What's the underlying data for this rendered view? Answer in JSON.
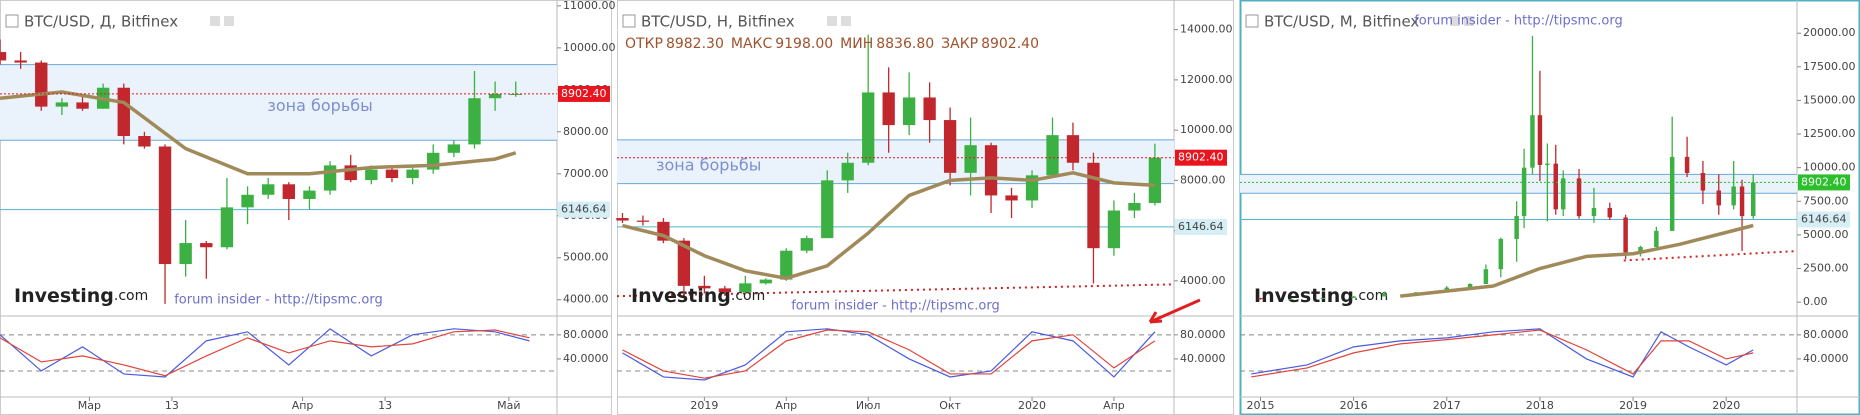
{
  "chart_data": [
    {
      "type": "candlestick",
      "title": "BTC/USD, Д, Bitfinex",
      "xlim": [
        -13,
        68
      ],
      "ylim": [
        3660,
        11140
      ],
      "yticks": [
        {
          "value": 4000,
          "label": "4000.00"
        },
        {
          "value": 5000,
          "label": "5000.00"
        },
        {
          "value": 6000,
          "label": "6000.00"
        },
        {
          "value": 7000,
          "label": "7000.00"
        },
        {
          "value": 8000,
          "label": "8000.00"
        },
        {
          "value": 9000,
          "label": "9000.00"
        },
        {
          "value": 10000,
          "label": "10000.00"
        },
        {
          "value": 11000,
          "label": "11000.00"
        }
      ],
      "xticks": [
        {
          "value": 0,
          "label": "Мар"
        },
        {
          "value": 12,
          "label": "13"
        },
        {
          "value": 31,
          "label": "Апр"
        },
        {
          "value": 43,
          "label": "13"
        },
        {
          "value": 61,
          "label": "Май"
        }
      ],
      "x": [
        -13,
        -10,
        -7,
        -4,
        -1,
        2,
        5,
        8,
        11,
        14,
        17,
        20,
        23,
        26,
        29,
        32,
        35,
        38,
        41,
        44,
        47,
        50,
        53,
        56,
        59,
        62
      ],
      "open": [
        9900,
        9700,
        9650,
        8600,
        8700,
        8550,
        9050,
        7900,
        7650,
        4850,
        5350,
        5250,
        6200,
        6500,
        6750,
        6400,
        6600,
        7200,
        6850,
        7100,
        6900,
        7100,
        7500,
        7700,
        8800,
        8900
      ],
      "high": [
        10200,
        9900,
        9700,
        8800,
        8900,
        9150,
        9150,
        8000,
        7700,
        5900,
        5400,
        6900,
        6700,
        6900,
        6800,
        6700,
        7300,
        7450,
        7200,
        7200,
        7200,
        7700,
        7800,
        9450,
        9200,
        9198
      ],
      "low": [
        9600,
        9500,
        8500,
        8400,
        8500,
        8550,
        7700,
        7600,
        3900,
        4550,
        4500,
        5200,
        5800,
        6400,
        5900,
        6150,
        6500,
        6800,
        6750,
        6800,
        6750,
        7000,
        7400,
        7600,
        8500,
        8836
      ],
      "close": [
        9700,
        9650,
        8600,
        8700,
        8550,
        9050,
        7900,
        7650,
        4850,
        5350,
        5250,
        6200,
        6500,
        6750,
        6400,
        6600,
        7200,
        6850,
        7100,
        6900,
        7100,
        7500,
        7700,
        8800,
        8900,
        8902
      ],
      "ma": {
        "color": "#a08a5a",
        "x": [
          -13,
          -4,
          5,
          14,
          23,
          32,
          41,
          50,
          59,
          62
        ],
        "values": [
          8800,
          8950,
          8700,
          7600,
          7000,
          7000,
          7150,
          7200,
          7350,
          7500
        ]
      },
      "zone": {
        "range": [
          7800,
          9600
        ],
        "label": "зона борьбы"
      },
      "level": {
        "value": 6146.64,
        "label": "6146.64"
      },
      "last": {
        "value": 8902.4,
        "label": "8902.40",
        "color": "#e8141e"
      },
      "watermark": [
        "Investing",
        ".com"
      ],
      "credit": "forum insider - http://tipsmc.org",
      "oscillator": {
        "ylim": [
          -20,
          108
        ],
        "yticks": [
          {
            "value": 80,
            "label": "80.0000"
          },
          {
            "value": 40,
            "label": "40.0000"
          }
        ],
        "levels": [
          80,
          20
        ],
        "series": [
          {
            "color": "#4a5be0",
            "x": [
              -13,
              -7,
              -1,
              5,
              11,
              17,
              23,
              29,
              35,
              41,
              47,
              53,
              59,
              64
            ],
            "values": [
              80,
              20,
              60,
              15,
              10,
              70,
              85,
              30,
              90,
              45,
              80,
              90,
              85,
              70
            ]
          },
          {
            "color": "#e0443a",
            "x": [
              -13,
              -7,
              -1,
              5,
              11,
              17,
              23,
              29,
              35,
              41,
              47,
              53,
              59,
              64
            ],
            "values": [
              75,
              35,
              45,
              30,
              12,
              45,
              75,
              50,
              70,
              60,
              65,
              85,
              88,
              75
            ]
          }
        ]
      }
    },
    {
      "type": "candlestick",
      "title": "BTC/USD, H, Bitfinex",
      "ohlc": [
        {
          "name": "ОТКР",
          "value": 8982.3,
          "label": "8982.30"
        },
        {
          "name": "МАКС",
          "value": 9198,
          "label": "9198.00"
        },
        {
          "name": "МИН",
          "value": 8836.8,
          "label": "8836.80"
        },
        {
          "name": "ЗАКР",
          "value": 8902.4,
          "label": "8902.40"
        }
      ],
      "xlim": [
        -3.2,
        17.2
      ],
      "ylim": [
        2680,
        15180
      ],
      "yticks": [
        {
          "value": 4000,
          "label": "4000.00"
        },
        {
          "value": 6000,
          "label": "6000.00"
        },
        {
          "value": 8000,
          "label": "8000.00"
        },
        {
          "value": 10000,
          "label": "10000.00"
        },
        {
          "value": 12000,
          "label": "12000.00"
        },
        {
          "value": 14000,
          "label": "14000.00"
        }
      ],
      "xticks": [
        {
          "value": 0,
          "label": "2019"
        },
        {
          "value": 3,
          "label": "Апр"
        },
        {
          "value": 6,
          "label": "Июл"
        },
        {
          "value": 9,
          "label": "Окт"
        },
        {
          "value": 12,
          "label": "2020"
        },
        {
          "value": 15,
          "label": "Апр"
        }
      ],
      "x": [
        -3,
        -2.25,
        -1.5,
        -0.75,
        0,
        0.75,
        1.5,
        2.25,
        3,
        3.75,
        4.5,
        5.25,
        6,
        6.75,
        7.5,
        8.25,
        9,
        9.75,
        10.5,
        11.25,
        12,
        12.75,
        13.5,
        14.25,
        15,
        15.75,
        16.5
      ],
      "open": [
        6500,
        6400,
        6350,
        5600,
        3800,
        3700,
        3550,
        3900,
        4050,
        5200,
        5700,
        8000,
        8700,
        11500,
        10200,
        11300,
        10400,
        8300,
        9400,
        7400,
        7200,
        8200,
        9800,
        8700,
        5300,
        6800,
        7100
      ],
      "high": [
        6700,
        6600,
        6500,
        5700,
        4200,
        3800,
        4200,
        4100,
        5300,
        5800,
        8400,
        9100,
        13800,
        12500,
        12300,
        11900,
        10900,
        10500,
        9500,
        7700,
        8400,
        10500,
        10300,
        9100,
        7200,
        7500,
        9460
      ],
      "low": [
        6300,
        6200,
        5500,
        3500,
        3500,
        3400,
        3500,
        3850,
        4000,
        5100,
        5700,
        7500,
        8600,
        9100,
        9800,
        9500,
        7800,
        7400,
        6700,
        6500,
        6900,
        8100,
        8400,
        3900,
        5000,
        6500,
        7000
      ],
      "close": [
        6400,
        6350,
        5600,
        3800,
        3700,
        3550,
        3900,
        4050,
        5200,
        5700,
        8000,
        8700,
        11500,
        10200,
        11300,
        10400,
        8300,
        9400,
        7400,
        7200,
        8200,
        9800,
        8700,
        5300,
        6800,
        7100,
        8902
      ],
      "ma": {
        "color": "#a08a5a",
        "x": [
          -3,
          -1.5,
          0,
          1.5,
          3,
          4.5,
          6,
          7.5,
          9,
          10.5,
          12,
          13.5,
          15,
          16.5
        ],
        "values": [
          6200,
          5800,
          5000,
          4400,
          4100,
          4600,
          5900,
          7400,
          8000,
          8100,
          8000,
          8300,
          7900,
          7800
        ]
      },
      "zone": {
        "range": [
          7870,
          9610
        ],
        "label": "зона борьбы"
      },
      "level": {
        "value": 6146.64,
        "label": "6146.64"
      },
      "last": {
        "value": 8902.4,
        "label": "8902.40",
        "color": "#e8141e"
      },
      "trend": {
        "x": [
          -3.2,
          17.2
        ],
        "values": [
          3390,
          3860
        ]
      },
      "watermark": [
        "Investing",
        ".com"
      ],
      "credit": "forum insider - http://tipsmc.org",
      "oscillator": {
        "ylim": [
          -20,
          108
        ],
        "yticks": [
          {
            "value": 80,
            "label": "80.0000"
          },
          {
            "value": 40,
            "label": "40.0000"
          }
        ],
        "levels": [
          80,
          20
        ],
        "series": [
          {
            "color": "#4a5be0",
            "x": [
              -3,
              -1.5,
              0,
              1.5,
              3,
              4.5,
              6,
              7.5,
              9,
              10.5,
              12,
              13.5,
              15,
              16.5
            ],
            "values": [
              50,
              10,
              5,
              30,
              85,
              90,
              80,
              40,
              10,
              20,
              85,
              70,
              10,
              85
            ]
          },
          {
            "color": "#e0443a",
            "x": [
              -3,
              -1.5,
              0,
              1.5,
              3,
              4.5,
              6,
              7.5,
              9,
              10.5,
              12,
              13.5,
              15,
              16.5
            ],
            "values": [
              55,
              20,
              8,
              20,
              70,
              88,
              85,
              55,
              15,
              15,
              70,
              80,
              25,
              70
            ]
          }
        ]
      }
    },
    {
      "type": "candlestick",
      "title": "BTC/USD, M, Bitfinex",
      "xlim": [
        2014.78,
        2020.76
      ],
      "ylim": [
        -881,
        22467
      ],
      "yticks": [
        {
          "value": 0,
          "label": "0.00"
        },
        {
          "value": 2500,
          "label": "2500.00"
        },
        {
          "value": 5000,
          "label": "5000.00"
        },
        {
          "value": 7500,
          "label": "7500.00"
        },
        {
          "value": 10000,
          "label": "10000.00"
        },
        {
          "value": 12500,
          "label": "12500.00"
        },
        {
          "value": 15000,
          "label": "15000.00"
        },
        {
          "value": 17500,
          "label": "17500.00"
        },
        {
          "value": 20000,
          "label": "20000.00"
        }
      ],
      "xticks": [
        2015,
        2016,
        2017,
        2018,
        2019,
        2020
      ],
      "x": [
        2015.0,
        2015.33,
        2015.67,
        2016.0,
        2016.33,
        2016.67,
        2017.0,
        2017.25,
        2017.42,
        2017.58,
        2017.75,
        2017.83,
        2017.92,
        2018.0,
        2018.08,
        2018.17,
        2018.25,
        2018.42,
        2018.58,
        2018.75,
        2018.92,
        2019.08,
        2019.25,
        2019.42,
        2019.58,
        2019.75,
        2019.92,
        2020.08,
        2020.17,
        2020.29
      ],
      "open": [
        300,
        230,
        240,
        310,
        420,
        620,
        730,
        1080,
        1350,
        2450,
        4700,
        6400,
        10000,
        13900,
        10200,
        10300,
        6900,
        9200,
        6400,
        7000,
        6300,
        3700,
        4100,
        5300,
        10800,
        9600,
        8300,
        7200,
        8600,
        6400
      ],
      "high": [
        320,
        250,
        320,
        450,
        780,
        750,
        1200,
        1400,
        2800,
        4800,
        7500,
        11400,
        19800,
        17200,
        11800,
        11700,
        9800,
        9900,
        8500,
        7400,
        6500,
        4200,
        5600,
        13800,
        12300,
        10500,
        9500,
        10500,
        9100,
        9500
      ],
      "low": [
        180,
        220,
        230,
        300,
        420,
        580,
        730,
        1050,
        1350,
        1850,
        3000,
        5500,
        9500,
        9000,
        6000,
        6500,
        6400,
        6200,
        5900,
        6100,
        3200,
        3400,
        4000,
        5300,
        9300,
        7300,
        6500,
        6900,
        3800,
        6200
      ],
      "close": [
        230,
        240,
        310,
        420,
        620,
        730,
        1080,
        1350,
        2450,
        4700,
        6400,
        10000,
        13900,
        10200,
        10300,
        6900,
        9200,
        6400,
        7000,
        6300,
        3700,
        4100,
        5300,
        10800,
        9600,
        8300,
        7200,
        8600,
        6400,
        8902
      ],
      "ma": {
        "color": "#a08a5a",
        "x": [
          2016.5,
          2017.5,
          2018.0,
          2018.5,
          2019.0,
          2019.5,
          2020.29
        ],
        "values": [
          450,
          1200,
          2500,
          3400,
          3600,
          4300,
          5700
        ]
      },
      "zone": {
        "range": [
          8100,
          9500
        ]
      },
      "level": {
        "value": 6146.64,
        "label": "6146.64"
      },
      "last": {
        "value": 8902.4,
        "label": "8902.40",
        "color": "#2bbf2b"
      },
      "trend": {
        "x": [
          2018.9,
          2020.76
        ],
        "values": [
          3100,
          3800
        ]
      },
      "watermark": [
        "Investing",
        ".com"
      ],
      "credit": "forum insider - http://tipsmc.org",
      "oscillator": {
        "ylim": [
          -20,
          108
        ],
        "yticks": [
          {
            "value": 80,
            "label": "80.0000"
          },
          {
            "value": 40,
            "label": "40.0000"
          }
        ],
        "levels": [
          80,
          20
        ],
        "series": [
          {
            "color": "#4a5be0",
            "x": [
              2014.9,
              2015.5,
              2016,
              2016.5,
              2017,
              2017.5,
              2018,
              2018.5,
              2019,
              2019.3,
              2019.6,
              2020,
              2020.29
            ],
            "values": [
              15,
              30,
              60,
              70,
              75,
              85,
              90,
              40,
              10,
              85,
              60,
              30,
              55
            ]
          },
          {
            "color": "#e0443a",
            "x": [
              2014.9,
              2015.5,
              2016,
              2016.5,
              2017,
              2017.5,
              2018,
              2018.5,
              2019,
              2019.3,
              2019.6,
              2020,
              2020.29
            ],
            "values": [
              10,
              25,
              50,
              65,
              72,
              80,
              88,
              55,
              15,
              70,
              70,
              40,
              50
            ]
          }
        ]
      }
    }
  ]
}
